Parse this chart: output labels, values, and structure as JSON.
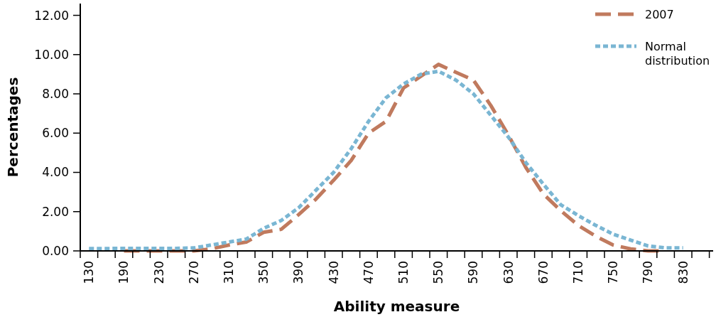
{
  "chart_data": {
    "type": "line",
    "xlabel": "Ability measure",
    "ylabel": "Percentages",
    "categories": [
      "130",
      null,
      "190",
      null,
      "230",
      null,
      "270",
      null,
      "310",
      null,
      "350",
      null,
      "390",
      null,
      "430",
      null,
      "470",
      null,
      "510",
      null,
      "550",
      null,
      "590",
      null,
      "630",
      null,
      "670",
      null,
      "710",
      null,
      "750",
      null,
      "790",
      null,
      "830"
    ],
    "series": [
      {
        "name": "2007",
        "color": "#c07a5e",
        "line_style": "dashed",
        "values": [
          null,
          null,
          0,
          0,
          0,
          0,
          0,
          0.1,
          0.3,
          0.45,
          0.95,
          1.1,
          1.85,
          2.65,
          3.6,
          4.6,
          6.0,
          6.6,
          8.3,
          8.9,
          9.5,
          9.1,
          8.7,
          7.4,
          5.9,
          4.25,
          2.9,
          2.05,
          1.3,
          0.75,
          0.3,
          0.1,
          0,
          0,
          null
        ]
      },
      {
        "name": "Normal distribution",
        "color": "#7ab6d3",
        "line_style": "dotted",
        "values": [
          0.12,
          0.12,
          0.13,
          0.13,
          0.13,
          0.13,
          0.15,
          0.3,
          0.45,
          0.6,
          1.15,
          1.55,
          2.2,
          3.1,
          4.0,
          5.2,
          6.6,
          7.8,
          8.5,
          9.0,
          9.15,
          8.7,
          8.0,
          6.9,
          5.8,
          4.5,
          3.4,
          2.35,
          1.8,
          1.3,
          0.85,
          0.55,
          0.25,
          0.15,
          0.15
        ]
      }
    ],
    "ylim": [
      0,
      12.6
    ],
    "yticks": [
      {
        "value": 0,
        "label": "0.00"
      },
      {
        "value": 2,
        "label": "2.00"
      },
      {
        "value": 4,
        "label": "4.00"
      },
      {
        "value": 6,
        "label": "6.00"
      },
      {
        "value": 8,
        "label": "8.00"
      },
      {
        "value": 10,
        "label": "10.00"
      },
      {
        "value": 12,
        "label": "12.00"
      }
    ],
    "grid": false,
    "legend": "top right",
    "marker": "none"
  }
}
